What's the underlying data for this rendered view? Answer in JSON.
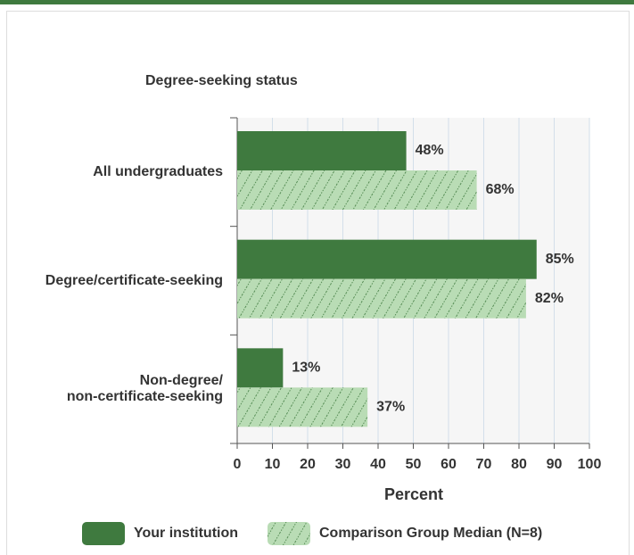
{
  "chart_data": {
    "type": "bar",
    "orientation": "horizontal",
    "title": "Degree-seeking status",
    "categories": [
      "All undergraduates",
      "Degree/certificate-seeking",
      "Non-degree/\nnon-certificate-seeking"
    ],
    "series": [
      {
        "name": "Your institution",
        "color": "#3f7a3f",
        "values": [
          48,
          85,
          13
        ],
        "value_labels": [
          "48%",
          "85%",
          "13%"
        ]
      },
      {
        "name": "Comparison Group Median (N=8)",
        "color": "#b9dcb5",
        "pattern": "hatch",
        "values": [
          68,
          82,
          37
        ],
        "value_labels": [
          "68%",
          "82%",
          "37%"
        ]
      }
    ],
    "xlabel": "Percent",
    "xlim": [
      0,
      100
    ],
    "xticks": [
      0,
      10,
      20,
      30,
      40,
      50,
      60,
      70,
      80,
      90,
      100
    ],
    "grid": true,
    "legend": "bottom"
  }
}
